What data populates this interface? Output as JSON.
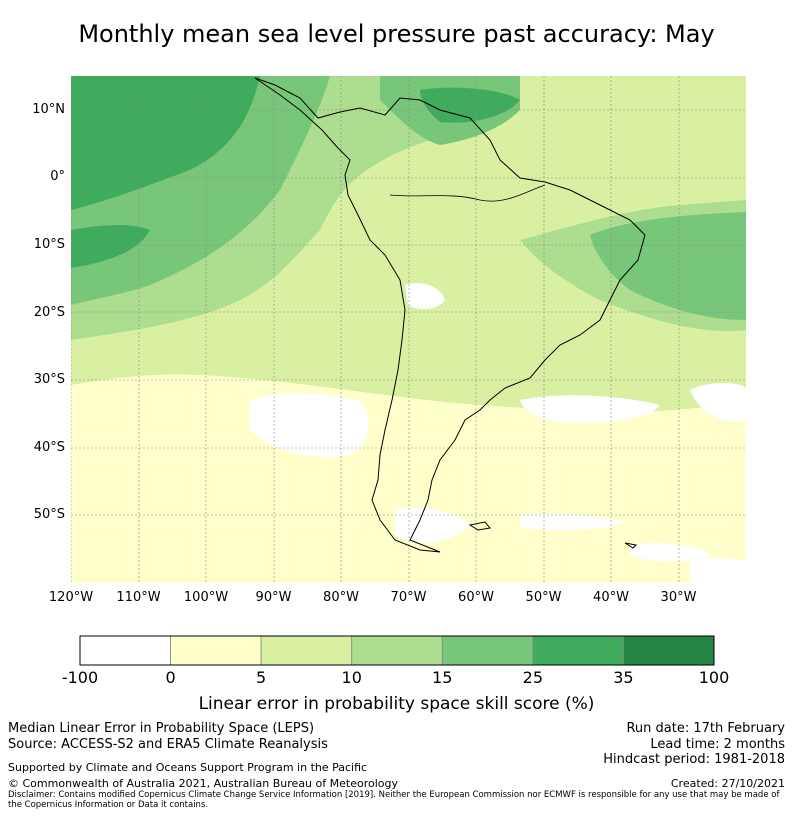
{
  "title": "Monthly mean sea level pressure past accuracy: May",
  "map": {
    "lat_ticks": [
      "10°N",
      "0°",
      "10°S",
      "20°S",
      "30°S",
      "40°S",
      "50°S"
    ],
    "lon_ticks": [
      "120°W",
      "110°W",
      "100°W",
      "90°W",
      "80°W",
      "70°W",
      "60°W",
      "50°W",
      "40°W",
      "30°W"
    ],
    "lat_values": [
      10,
      0,
      -10,
      -20,
      -30,
      -40,
      -50
    ],
    "lon_values": [
      -120,
      -110,
      -100,
      -90,
      -80,
      -70,
      -60,
      -50,
      -40,
      -30
    ],
    "extent": {
      "lon_min": -120,
      "lon_max": -20,
      "lat_min": -60,
      "lat_max": 15
    },
    "grid": true,
    "colors": {
      "land_outline": "#000000",
      "gridline": "#888888"
    }
  },
  "colorbar": {
    "title": "Linear error in probability space skill score (%)",
    "labels": [
      "-100",
      "0",
      "5",
      "10",
      "15",
      "25",
      "35",
      "100"
    ],
    "bins": [
      {
        "from": -100,
        "to": 0,
        "color": "#ffffff"
      },
      {
        "from": 0,
        "to": 5,
        "color": "#ffffcc"
      },
      {
        "from": 5,
        "to": 10,
        "color": "#d9f0a3"
      },
      {
        "from": 10,
        "to": 15,
        "color": "#addd8e"
      },
      {
        "from": 15,
        "to": 25,
        "color": "#78c679"
      },
      {
        "from": 25,
        "to": 35,
        "color": "#41ab5d"
      },
      {
        "from": 35,
        "to": 100,
        "color": "#238443"
      }
    ]
  },
  "footer": {
    "left_line1": "Median Linear Error in Probability Space (LEPS)",
    "left_line2": "Source: ACCESS-S2 and ERA5 Climate Reanalysis",
    "right_line1": "Run date: 17th February",
    "right_line2": "Lead time: 2 months",
    "right_line3": "Hindcast period: 1981-2018",
    "support": "Supported by Climate and Oceans Support Program in the Pacific",
    "copyright": "© Commonwealth of Australia 2021, Australian Bureau of Meteorology",
    "created": "Created: 27/10/2021",
    "disclaimer": "Disclaimer: Contains modified Copernicus Climate Change Service Information [2019]. Neither the European Commission nor ECMWF is responsible for any use that may be made of the Copernicus Information or Data it contains."
  }
}
